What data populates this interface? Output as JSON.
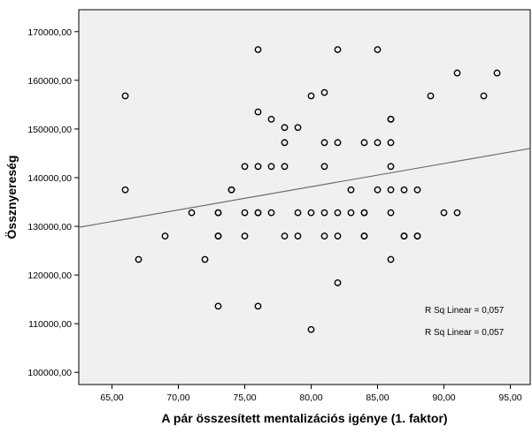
{
  "chart_data": {
    "type": "scatter",
    "xlabel": "A pár összesített mentalizációs igénye (1. faktor)",
    "ylabel": "Össznyereség",
    "xlim": [
      62.5,
      96.5
    ],
    "ylim": [
      97500,
      174500
    ],
    "x_ticks": [
      65,
      70,
      75,
      80,
      85,
      90,
      95
    ],
    "x_tick_labels": [
      "65,00",
      "70,00",
      "75,00",
      "80,00",
      "85,00",
      "90,00",
      "95,00"
    ],
    "y_ticks": [
      100000,
      110000,
      120000,
      130000,
      140000,
      150000,
      160000,
      170000
    ],
    "y_tick_labels": [
      "100000,00",
      "110000,00",
      "120000,00",
      "130000,00",
      "140000,00",
      "150000,00",
      "160000,00",
      "170000,00"
    ],
    "grid": false,
    "background": "#f0f0f0",
    "marker": "hollow-circle",
    "points": [
      {
        "x": 66,
        "y": 156800
      },
      {
        "x": 66,
        "y": 137500
      },
      {
        "x": 67,
        "y": 123200
      },
      {
        "x": 69,
        "y": 128000
      },
      {
        "x": 71,
        "y": 132800
      },
      {
        "x": 72,
        "y": 123200
      },
      {
        "x": 73,
        "y": 132800
      },
      {
        "x": 73,
        "y": 132800
      },
      {
        "x": 73,
        "y": 128000
      },
      {
        "x": 73,
        "y": 128000
      },
      {
        "x": 73,
        "y": 113600
      },
      {
        "x": 74,
        "y": 137500
      },
      {
        "x": 74,
        "y": 137500
      },
      {
        "x": 75,
        "y": 142300
      },
      {
        "x": 75,
        "y": 132800
      },
      {
        "x": 75,
        "y": 128000
      },
      {
        "x": 76,
        "y": 166300
      },
      {
        "x": 76,
        "y": 153500
      },
      {
        "x": 76,
        "y": 142300
      },
      {
        "x": 76,
        "y": 132800
      },
      {
        "x": 76,
        "y": 132800
      },
      {
        "x": 76,
        "y": 113600
      },
      {
        "x": 77,
        "y": 152000
      },
      {
        "x": 77,
        "y": 142300
      },
      {
        "x": 77,
        "y": 132800
      },
      {
        "x": 78,
        "y": 150300
      },
      {
        "x": 78,
        "y": 147200
      },
      {
        "x": 78,
        "y": 142300
      },
      {
        "x": 78,
        "y": 128000
      },
      {
        "x": 79,
        "y": 150300
      },
      {
        "x": 79,
        "y": 132800
      },
      {
        "x": 79,
        "y": 128000
      },
      {
        "x": 80,
        "y": 156800
      },
      {
        "x": 80,
        "y": 132800
      },
      {
        "x": 80,
        "y": 108800
      },
      {
        "x": 81,
        "y": 157500
      },
      {
        "x": 81,
        "y": 147200
      },
      {
        "x": 81,
        "y": 142300
      },
      {
        "x": 81,
        "y": 132800
      },
      {
        "x": 81,
        "y": 128000
      },
      {
        "x": 82,
        "y": 166300
      },
      {
        "x": 82,
        "y": 147200
      },
      {
        "x": 82,
        "y": 132800
      },
      {
        "x": 82,
        "y": 128000
      },
      {
        "x": 82,
        "y": 118400
      },
      {
        "x": 83,
        "y": 137500
      },
      {
        "x": 83,
        "y": 132800
      },
      {
        "x": 84,
        "y": 147200
      },
      {
        "x": 84,
        "y": 132800
      },
      {
        "x": 84,
        "y": 132800
      },
      {
        "x": 84,
        "y": 128000
      },
      {
        "x": 84,
        "y": 128000
      },
      {
        "x": 85,
        "y": 166300
      },
      {
        "x": 85,
        "y": 147200
      },
      {
        "x": 85,
        "y": 137500
      },
      {
        "x": 86,
        "y": 152000
      },
      {
        "x": 86,
        "y": 152000
      },
      {
        "x": 86,
        "y": 147200
      },
      {
        "x": 86,
        "y": 142300
      },
      {
        "x": 86,
        "y": 137500
      },
      {
        "x": 86,
        "y": 132800
      },
      {
        "x": 86,
        "y": 123200
      },
      {
        "x": 87,
        "y": 137500
      },
      {
        "x": 87,
        "y": 128000
      },
      {
        "x": 87,
        "y": 128000
      },
      {
        "x": 88,
        "y": 137500
      },
      {
        "x": 88,
        "y": 128000
      },
      {
        "x": 88,
        "y": 128000
      },
      {
        "x": 89,
        "y": 156800
      },
      {
        "x": 90,
        "y": 132800
      },
      {
        "x": 91,
        "y": 161500
      },
      {
        "x": 91,
        "y": 132800
      },
      {
        "x": 93,
        "y": 156800
      },
      {
        "x": 94,
        "y": 161500
      }
    ],
    "fit_line": {
      "x": [
        62.5,
        96.5
      ],
      "y": [
        129800,
        146000
      ],
      "color": "#6e6e6e"
    },
    "annotations": [
      "R Sq Linear = 0,057",
      "R Sq Linear = 0,057"
    ]
  }
}
